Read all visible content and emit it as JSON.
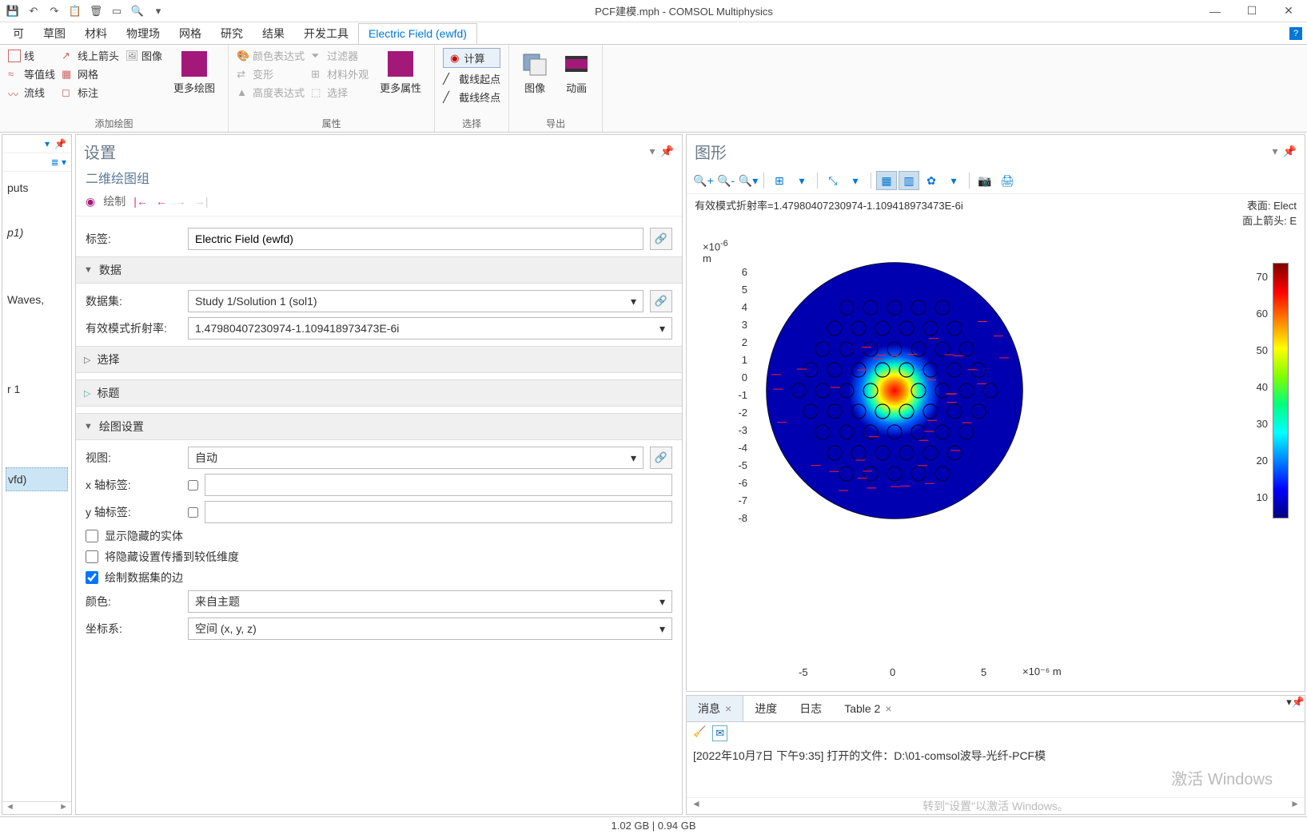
{
  "titlebar": {
    "title": "PCF建模.mph - COMSOL Multiphysics"
  },
  "menubar": {
    "items": [
      "可",
      "草图",
      "材料",
      "物理场",
      "网格",
      "研究",
      "结果",
      "开发工具"
    ],
    "active": "Electric Field (ewfd)"
  },
  "ribbon": {
    "g1": {
      "line": "线",
      "arrowline": "线上箭头",
      "image": "图像",
      "contour": "等值线",
      "mesh": "网格",
      "stream": "流线",
      "annot": "标注",
      "moreplot": "更多绘图",
      "label": "添加绘图"
    },
    "g2": {
      "colorexpr": "颜色表达式",
      "filter": "过滤器",
      "deform": "变形",
      "matapp": "材料外观",
      "heightexpr": "高度表达式",
      "select": "选择",
      "moreattr": "更多属性",
      "label": "属性"
    },
    "g3": {
      "compute": "计算",
      "cutstart": "截线起点",
      "cutend": "截线终点",
      "label": "选择"
    },
    "g4": {
      "image": "图像",
      "anim": "动画",
      "label": "导出"
    }
  },
  "tree": {
    "items": [
      "puts",
      "",
      "p1)",
      "",
      "",
      "Waves,",
      "",
      "",
      "",
      "r 1",
      ""
    ],
    "selected": "vfd)"
  },
  "settings": {
    "header": "设置",
    "sub": "二维绘图组",
    "plot_btn": "绘制",
    "label_lbl": "标签:",
    "label_val": "Electric Field (ewfd)",
    "sec_data": "数据",
    "dataset_lbl": "数据集:",
    "dataset_val": "Study 1/Solution 1 (sol1)",
    "refidx_lbl": "有效模式折射率:",
    "refidx_val": "1.47980407230974-1.109418973473E-6i",
    "sec_select": "选择",
    "sec_title": "标题",
    "sec_plotset": "绘图设置",
    "view_lbl": "视图:",
    "view_val": "自动",
    "xlabel_lbl": "x 轴标签:",
    "ylabel_lbl": "y 轴标签:",
    "chk_hidden": "显示隐藏的实体",
    "chk_propagate": "将隐藏设置传播到较低维度",
    "chk_edges": "绘制数据集的边",
    "color_lbl": "颜色:",
    "color_val": "来自主题",
    "coord_lbl": "坐标系:",
    "coord_val": "空间  (x, y, z)"
  },
  "graphics": {
    "header": "图形",
    "info1": "有效模式折射率=1.47980407230974-1.109418973473E-6i",
    "info2_a": "表面: Elect",
    "info2_b": "面上箭头: E",
    "yunit_exp": "×10",
    "yunit_sup": "-6",
    "yunit_m": "m",
    "xunit": "×10⁻⁶  m",
    "yticks": [
      "6",
      "5",
      "4",
      "3",
      "2",
      "1",
      "0",
      "-1",
      "-2",
      "-3",
      "-4",
      "-5",
      "-6",
      "-7",
      "-8"
    ],
    "xticks": [
      "-5",
      "0",
      "5"
    ],
    "cbticks": [
      "70",
      "60",
      "50",
      "40",
      "30",
      "20",
      "10"
    ],
    "plot": {
      "bg_color": "#0000c0",
      "center_colors": [
        "#ff0000",
        "#ff8000",
        "#ffff00",
        "#00ff80",
        "#00c0ff",
        "#0040ff",
        "#0000c0"
      ]
    }
  },
  "messages": {
    "tabs": [
      "消息",
      "进度",
      "日志",
      "Table 2"
    ],
    "active": 0,
    "log": "[2022年10月7日 下午9:35] 打开的文件：D:\\01-comsol波导-光纤-PCF模",
    "watermark1": "激活 Windows",
    "watermark2": "转到\"设置\"以激活 Windows。"
  },
  "status": "1.02 GB | 0.94 GB"
}
